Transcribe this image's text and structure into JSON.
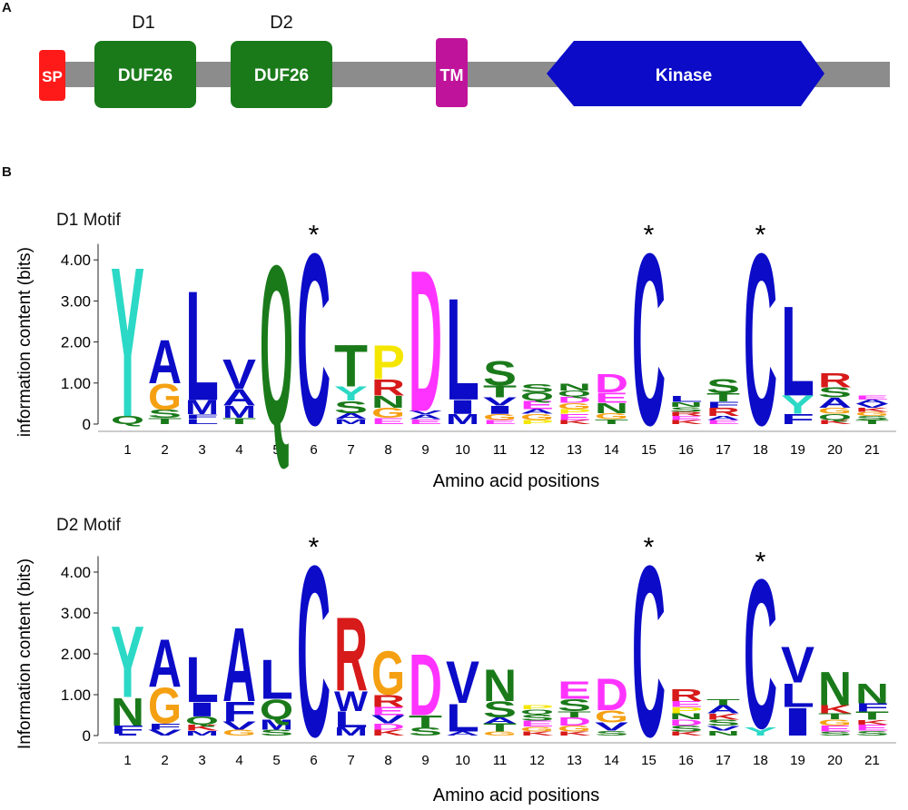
{
  "panel_a": {
    "label": "A",
    "sublabels": [
      "D1",
      "D2"
    ],
    "domains": [
      {
        "name": "SP",
        "color": "#ff1a1a"
      },
      {
        "name": "DUF26",
        "color": "#1a7a1a"
      },
      {
        "name": "DUF26",
        "color": "#1a7a1a"
      },
      {
        "name": "TM",
        "color": "#c0139b"
      },
      {
        "name": "Kinase",
        "color": "#0b0bc8"
      }
    ],
    "backbone_color": "#8c8c8c"
  },
  "panel_b": {
    "label": "B"
  },
  "chart_data": [
    {
      "type": "sequence-logo",
      "title": "D1 Motif",
      "ylabel": "information content (bits)",
      "xlabel": "Amino acid positions",
      "ylim": [
        0,
        4.3
      ],
      "yticks": [
        "0",
        "1.00",
        "2.00",
        "3.00",
        "4.00"
      ],
      "positions": [
        "1",
        "2",
        "3",
        "4",
        "5",
        "6",
        "7",
        "8",
        "9",
        "10",
        "11",
        "12",
        "13",
        "14",
        "15",
        "16",
        "17",
        "18",
        "19",
        "20",
        "21"
      ],
      "starred_positions": [
        6,
        15,
        18
      ],
      "star_symbol": "*",
      "stacks": [
        [
          {
            "aa": "Q",
            "h": 0.2
          },
          {
            "aa": "Y",
            "h": 3.75
          }
        ],
        [
          {
            "aa": "T",
            "h": 0.15
          },
          {
            "aa": "S",
            "h": 0.2
          },
          {
            "aa": "G",
            "h": 0.65
          },
          {
            "aa": "A",
            "h": 1.1
          }
        ],
        [
          {
            "aa": "L",
            "h": 0.12
          },
          {
            "aa": "F",
            "h": 0.12
          },
          {
            "aa": "M",
            "h": 0.35
          },
          {
            "aa": "L",
            "h": 2.75
          }
        ],
        [
          {
            "aa": "T",
            "h": 0.15
          },
          {
            "aa": "M",
            "h": 0.3
          },
          {
            "aa": "A",
            "h": 0.4
          },
          {
            "aa": "V",
            "h": 0.75
          }
        ],
        [
          {
            "aa": "Q",
            "h": 4.0
          }
        ],
        [
          {
            "aa": "C",
            "h": 4.3
          }
        ],
        [
          {
            "aa": "M",
            "h": 0.12
          },
          {
            "aa": "A",
            "h": 0.15
          },
          {
            "aa": "S",
            "h": 0.3
          },
          {
            "aa": "Y",
            "h": 0.35
          },
          {
            "aa": "T",
            "h": 1.05
          }
        ],
        [
          {
            "aa": "E",
            "h": 0.15
          },
          {
            "aa": "G",
            "h": 0.25
          },
          {
            "aa": "N",
            "h": 0.3
          },
          {
            "aa": "R",
            "h": 0.4
          },
          {
            "aa": "P",
            "h": 0.85
          }
        ],
        [
          {
            "aa": "E",
            "h": 0.12
          },
          {
            "aa": "A",
            "h": 0.12
          },
          {
            "aa": "V",
            "h": 0.08
          },
          {
            "aa": "D",
            "h": 3.55
          }
        ],
        [
          {
            "aa": "M",
            "h": 0.25
          },
          {
            "aa": "I",
            "h": 0.35
          },
          {
            "aa": "L",
            "h": 2.55
          }
        ],
        [
          {
            "aa": "E",
            "h": 0.1
          },
          {
            "aa": "G",
            "h": 0.15
          },
          {
            "aa": "I",
            "h": 0.2
          },
          {
            "aa": "V",
            "h": 0.2
          },
          {
            "aa": "T",
            "h": 0.3
          },
          {
            "aa": "S",
            "h": 0.6
          }
        ],
        [
          {
            "aa": "P",
            "h": 0.1
          },
          {
            "aa": "G",
            "h": 0.15
          },
          {
            "aa": "A",
            "h": 0.12
          },
          {
            "aa": "E",
            "h": 0.2
          },
          {
            "aa": "Q",
            "h": 0.2
          },
          {
            "aa": "S",
            "h": 0.2
          }
        ],
        [
          {
            "aa": "K",
            "h": 0.1
          },
          {
            "aa": "E",
            "h": 0.15
          },
          {
            "aa": "P",
            "h": 0.12
          },
          {
            "aa": "G",
            "h": 0.15
          },
          {
            "aa": "D",
            "h": 0.15
          },
          {
            "aa": "Q",
            "h": 0.15
          },
          {
            "aa": "N",
            "h": 0.18
          }
        ],
        [
          {
            "aa": "T",
            "h": 0.12
          },
          {
            "aa": "G",
            "h": 0.15
          },
          {
            "aa": "N",
            "h": 0.25
          },
          {
            "aa": "E",
            "h": 0.25
          },
          {
            "aa": "D",
            "h": 0.45
          }
        ],
        [
          {
            "aa": "C",
            "h": 4.3
          }
        ],
        [
          {
            "aa": "K",
            "h": 0.1
          },
          {
            "aa": "E",
            "h": 0.1
          },
          {
            "aa": "R",
            "h": 0.1
          },
          {
            "aa": "S",
            "h": 0.12
          },
          {
            "aa": "N",
            "h": 0.12
          },
          {
            "aa": "L",
            "h": 0.15
          }
        ],
        [
          {
            "aa": "E",
            "h": 0.1
          },
          {
            "aa": "A",
            "h": 0.1
          },
          {
            "aa": "R",
            "h": 0.2
          },
          {
            "aa": "F",
            "h": 0.15
          },
          {
            "aa": "T",
            "h": 0.2
          },
          {
            "aa": "S",
            "h": 0.35
          }
        ],
        [
          {
            "aa": "C",
            "h": 4.3
          }
        ],
        [
          {
            "aa": "F",
            "h": 0.25
          },
          {
            "aa": "Y",
            "h": 0.45
          },
          {
            "aa": "L",
            "h": 2.25
          }
        ],
        [
          {
            "aa": "K",
            "h": 0.1
          },
          {
            "aa": "Q",
            "h": 0.15
          },
          {
            "aa": "G",
            "h": 0.15
          },
          {
            "aa": "A",
            "h": 0.25
          },
          {
            "aa": "S",
            "h": 0.25
          },
          {
            "aa": "R",
            "h": 0.35
          }
        ],
        [
          {
            "aa": "T",
            "h": 0.1
          },
          {
            "aa": "S",
            "h": 0.1
          },
          {
            "aa": "G",
            "h": 0.1
          },
          {
            "aa": "K",
            "h": 0.1
          },
          {
            "aa": "V",
            "h": 0.1
          },
          {
            "aa": "A",
            "h": 0.1
          },
          {
            "aa": "E",
            "h": 0.1
          }
        ]
      ]
    },
    {
      "type": "sequence-logo",
      "title": "D2 Motif",
      "ylabel": "Information content (bits)",
      "xlabel": "Amino acid positions",
      "ylim": [
        0,
        4.3
      ],
      "yticks": [
        "0",
        "1.00",
        "2.00",
        "3.00",
        "4.00"
      ],
      "positions": [
        "1",
        "2",
        "3",
        "4",
        "5",
        "6",
        "7",
        "8",
        "9",
        "10",
        "11",
        "12",
        "13",
        "14",
        "15",
        "16",
        "17",
        "18",
        "19",
        "20",
        "21"
      ],
      "starred_positions": [
        6,
        15,
        18
      ],
      "star_symbol": "*",
      "stacks": [
        [
          {
            "aa": "I",
            "h": 0.05
          },
          {
            "aa": "F",
            "h": 0.2
          },
          {
            "aa": "N",
            "h": 0.7
          },
          {
            "aa": "Y",
            "h": 1.8
          }
        ],
        [
          {
            "aa": "V",
            "h": 0.15
          },
          {
            "aa": "F",
            "h": 0.15
          },
          {
            "aa": "G",
            "h": 0.9
          },
          {
            "aa": "A",
            "h": 1.2
          }
        ],
        [
          {
            "aa": "M",
            "h": 0.12
          },
          {
            "aa": "K",
            "h": 0.15
          },
          {
            "aa": "Q",
            "h": 0.2
          },
          {
            "aa": "I",
            "h": 0.35
          },
          {
            "aa": "L",
            "h": 1.15
          }
        ],
        [
          {
            "aa": "G",
            "h": 0.15
          },
          {
            "aa": "V",
            "h": 0.2
          },
          {
            "aa": "F",
            "h": 0.5
          },
          {
            "aa": "A",
            "h": 1.85
          }
        ],
        [
          {
            "aa": "S",
            "h": 0.15
          },
          {
            "aa": "M",
            "h": 0.25
          },
          {
            "aa": "Q",
            "h": 0.5
          },
          {
            "aa": "L",
            "h": 1.0
          }
        ],
        [
          {
            "aa": "C",
            "h": 4.3
          }
        ],
        [
          {
            "aa": "M",
            "h": 0.2
          },
          {
            "aa": "L",
            "h": 0.4
          },
          {
            "aa": "W",
            "h": 0.5
          },
          {
            "aa": "R",
            "h": 1.85
          }
        ],
        [
          {
            "aa": "K",
            "h": 0.15
          },
          {
            "aa": "D",
            "h": 0.15
          },
          {
            "aa": "V",
            "h": 0.2
          },
          {
            "aa": "E",
            "h": 0.2
          },
          {
            "aa": "R",
            "h": 0.3
          },
          {
            "aa": "G",
            "h": 1.1
          }
        ],
        [
          {
            "aa": "S",
            "h": 0.2
          },
          {
            "aa": "T",
            "h": 0.3
          },
          {
            "aa": "D",
            "h": 1.55
          }
        ],
        [
          {
            "aa": "A",
            "h": 0.1
          },
          {
            "aa": "L",
            "h": 0.7
          },
          {
            "aa": "V",
            "h": 1.05
          }
        ],
        [
          {
            "aa": "G",
            "h": 0.1
          },
          {
            "aa": "T",
            "h": 0.2
          },
          {
            "aa": "A",
            "h": 0.15
          },
          {
            "aa": "S",
            "h": 0.4
          },
          {
            "aa": "N",
            "h": 0.8
          }
        ],
        [
          {
            "aa": "K",
            "h": 0.1
          },
          {
            "aa": "G",
            "h": 0.12
          },
          {
            "aa": "E",
            "h": 0.15
          },
          {
            "aa": "S",
            "h": 0.15
          },
          {
            "aa": "Q",
            "h": 0.12
          },
          {
            "aa": "P",
            "h": 0.1
          }
        ],
        [
          {
            "aa": "K",
            "h": 0.1
          },
          {
            "aa": "G",
            "h": 0.15
          },
          {
            "aa": "D",
            "h": 0.2
          },
          {
            "aa": "T",
            "h": 0.15
          },
          {
            "aa": "S",
            "h": 0.3
          },
          {
            "aa": "E",
            "h": 0.45
          }
        ],
        [
          {
            "aa": "S",
            "h": 0.12
          },
          {
            "aa": "V",
            "h": 0.2
          },
          {
            "aa": "G",
            "h": 0.3
          },
          {
            "aa": "D",
            "h": 0.8
          }
        ],
        [
          {
            "aa": "C",
            "h": 4.3
          }
        ],
        [
          {
            "aa": "K",
            "h": 0.1
          },
          {
            "aa": "S",
            "h": 0.15
          },
          {
            "aa": "D",
            "h": 0.15
          },
          {
            "aa": "N",
            "h": 0.15
          },
          {
            "aa": "P",
            "h": 0.15
          },
          {
            "aa": "E",
            "h": 0.15
          },
          {
            "aa": "R",
            "h": 0.3
          }
        ],
        [
          {
            "aa": "N",
            "h": 0.12
          },
          {
            "aa": "V",
            "h": 0.12
          },
          {
            "aa": "S",
            "h": 0.15
          },
          {
            "aa": "K",
            "h": 0.15
          },
          {
            "aa": "A",
            "h": 0.2
          },
          {
            "aa": "T",
            "h": 0.15
          }
        ],
        [
          {
            "aa": "Y",
            "h": 0.2
          },
          {
            "aa": "C",
            "h": 3.75
          }
        ],
        [
          {
            "aa": "I",
            "h": 0.7
          },
          {
            "aa": "L",
            "h": 0.6
          },
          {
            "aa": "V",
            "h": 0.9
          }
        ],
        [
          {
            "aa": "S",
            "h": 0.1
          },
          {
            "aa": "E",
            "h": 0.15
          },
          {
            "aa": "G",
            "h": 0.15
          },
          {
            "aa": "T",
            "h": 0.15
          },
          {
            "aa": "K",
            "h": 0.2
          },
          {
            "aa": "N",
            "h": 0.85
          }
        ],
        [
          {
            "aa": "S",
            "h": 0.12
          },
          {
            "aa": "E",
            "h": 0.15
          },
          {
            "aa": "K",
            "h": 0.12
          },
          {
            "aa": "T",
            "h": 0.2
          },
          {
            "aa": "F",
            "h": 0.2
          },
          {
            "aa": "N",
            "h": 0.5
          }
        ]
      ]
    }
  ],
  "aa_colors": {
    "A": "#0b0bc8",
    "C": "#0b0bc8",
    "F": "#0b0bc8",
    "I": "#0b0bc8",
    "L": "#0b0bc8",
    "M": "#0b0bc8",
    "V": "#0b0bc8",
    "W": "#0b0bc8",
    "Y": "#2bd9c6",
    "H": "#2bd9c6",
    "N": "#1a7a1a",
    "Q": "#1a7a1a",
    "S": "#1a7a1a",
    "T": "#1a7a1a",
    "G": "#f5a012",
    "P": "#f5e600",
    "D": "#ff33ff",
    "E": "#ff33ff",
    "K": "#d71a1a",
    "R": "#d71a1a"
  }
}
